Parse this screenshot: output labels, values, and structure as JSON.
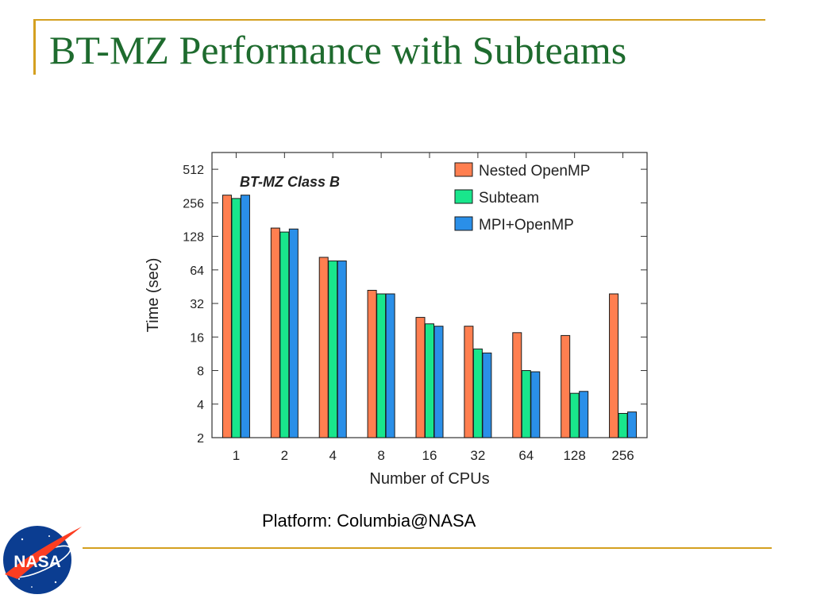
{
  "slide": {
    "title": "BT-MZ Performance with Subteams",
    "caption": "Platform: Columbia@NASA",
    "logo_text": "NASA",
    "colors": {
      "title": "#1E6B2E",
      "rule": "#D4A020"
    }
  },
  "chart_data": {
    "type": "bar",
    "title": "BT-MZ Class B",
    "xlabel": "Number of CPUs",
    "ylabel": "Time (sec)",
    "yscale": "log2",
    "ylim": [
      2,
      724
    ],
    "yticks": [
      2,
      4,
      8,
      16,
      32,
      64,
      128,
      256,
      512
    ],
    "grid": false,
    "legend_position": "top-right",
    "categories": [
      "1",
      "2",
      "4",
      "8",
      "16",
      "32",
      "64",
      "128",
      "256"
    ],
    "series": [
      {
        "name": "Nested OpenMP",
        "color": "#FF7F50",
        "values": [
          300,
          152,
          83,
          42,
          24,
          20,
          17.5,
          16.5,
          39
        ]
      },
      {
        "name": "Subteam",
        "color": "#19E68C",
        "values": [
          280,
          140,
          77,
          39,
          21,
          12.5,
          8,
          5,
          3.3
        ]
      },
      {
        "name": "MPI+OpenMP",
        "color": "#2A8FE8",
        "values": [
          300,
          149,
          77,
          39,
          20,
          11.5,
          7.8,
          5.2,
          3.4
        ]
      }
    ]
  }
}
